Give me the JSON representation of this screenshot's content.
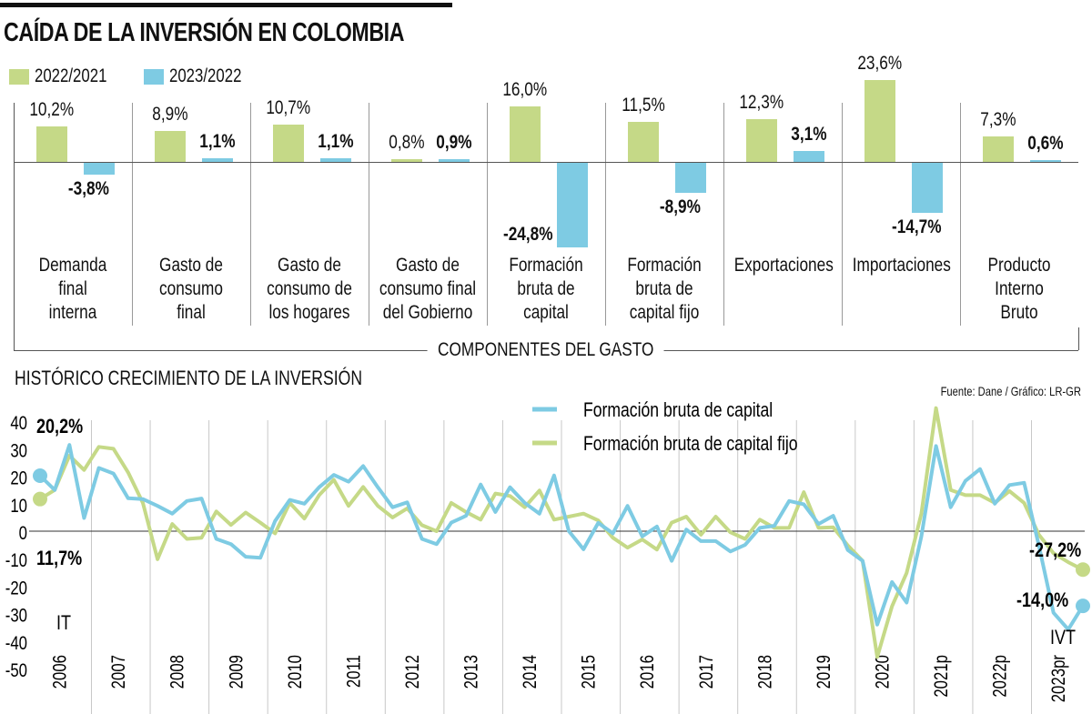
{
  "title": "CAÍDA DE LA INVERSIÓN EN COLOMBIA",
  "colors": {
    "series_2022_2021": "#c5d987",
    "series_2023_2022": "#7ecbe3",
    "fbk": "#7ecbe3",
    "fbkf": "#c5d987"
  },
  "legend": [
    {
      "label": "2022/2021",
      "color": "#c5d987"
    },
    {
      "label": "2023/2022",
      "color": "#7ecbe3"
    }
  ],
  "group_label": "COMPONENTES DEL GASTO",
  "subtitle": "HISTÓRICO CRECIMIENTO DE LA INVERSIÓN",
  "source": "Fuente: Dane / Gráfico: LR-GR",
  "chart_data": [
    {
      "type": "bar",
      "title": "CAÍDA DE LA INVERSIÓN EN COLOMBIA",
      "xlabel": "COMPONENTES DEL GASTO",
      "legend_position": "top-left",
      "categories": [
        {
          "lines": [
            "Demanda",
            "final",
            "interna"
          ]
        },
        {
          "lines": [
            "Gasto de",
            "consumo",
            "final"
          ]
        },
        {
          "lines": [
            "Gasto de",
            "consumo de",
            "los hogares"
          ]
        },
        {
          "lines": [
            "Gasto de",
            "consumo final",
            "del Gobierno"
          ]
        },
        {
          "lines": [
            "Formación",
            "bruta de",
            "capital"
          ]
        },
        {
          "lines": [
            "Formación",
            "bruta de",
            "capital fijo"
          ]
        },
        {
          "lines": [
            "Exportaciones"
          ]
        },
        {
          "lines": [
            "Importaciones"
          ]
        },
        {
          "lines": [
            "Producto",
            "Interno",
            "Bruto"
          ]
        }
      ],
      "series": [
        {
          "name": "2022/2021",
          "values": [
            10.2,
            8.9,
            10.7,
            0.8,
            16.0,
            11.5,
            12.3,
            23.6,
            7.3
          ],
          "labels": [
            "10,2%",
            "8,9%",
            "10,7%",
            "0,8%",
            "16,0%",
            "11,5%",
            "12,3%",
            "23,6%",
            "7,3%"
          ]
        },
        {
          "name": "2023/2022",
          "values": [
            -3.8,
            1.1,
            1.1,
            0.9,
            -24.8,
            -8.9,
            3.1,
            -14.7,
            0.6
          ],
          "labels": [
            "-3,8%",
            "1,1%",
            "1,1%",
            "0,9%",
            "-24,8%",
            "-8,9%",
            "3,1%",
            "-14,7%",
            "0,6%"
          ]
        }
      ]
    },
    {
      "type": "line",
      "title": "HISTÓRICO CRECIMIENTO DE LA INVERSIÓN",
      "ylim": [
        -50,
        40
      ],
      "yticks": [
        40,
        30,
        20,
        10,
        0,
        -10,
        -20,
        -30,
        -40,
        -50
      ],
      "xtick_labels": [
        "2006",
        "2007",
        "2008",
        "2009",
        "2010",
        "2011",
        "2012",
        "2013",
        "2014",
        "2015",
        "2016",
        "2017",
        "2018",
        "2019",
        "2020",
        "2021p",
        "2022p",
        "2023pr"
      ],
      "grid": "vertical",
      "legend_position": "top-center",
      "series": [
        {
          "name": "Formación bruta de capital",
          "color": "#7ecbe3",
          "values": [
            20.2,
            15,
            31.4,
            4.8,
            23,
            21,
            12,
            11.7,
            9.2,
            6.4,
            11,
            11.9,
            -2.8,
            -4.7,
            -9.3,
            -9.7,
            3.7,
            11.4,
            10,
            16,
            20.5,
            18,
            23.7,
            16,
            8.7,
            10.5,
            -2.8,
            -4.7,
            3.1,
            5.6,
            17,
            7,
            16,
            10.3,
            6.4,
            20.3,
            0,
            -6.6,
            3,
            -0.8,
            9.2,
            -1.9,
            1.7,
            -10.8,
            0.6,
            -3.6,
            -3.6,
            -7.4,
            -5,
            1.2,
            2,
            11,
            9.8,
            2.6,
            5.6,
            -6.9,
            -10.8,
            -34,
            -18.5,
            -26,
            -1.9,
            31,
            8.7,
            18.3,
            22.6,
            10,
            16.8,
            17.6,
            -5.2,
            -29.7,
            -35.8,
            -27.2
          ]
        },
        {
          "name": "Formación bruta de capital fijo",
          "color": "#c5d987",
          "values": [
            11.7,
            15,
            27.5,
            22.3,
            30.7,
            30,
            21.4,
            10.3,
            -10.2,
            2.6,
            -2.8,
            -2.4,
            7.2,
            2.3,
            6.8,
            3.1,
            -0.8,
            10.3,
            4.6,
            13.1,
            18.7,
            9.2,
            16.1,
            9.2,
            5,
            8.3,
            2.2,
            0,
            10.3,
            7,
            4.2,
            13.7,
            12.8,
            8.7,
            14.8,
            4.2,
            5.3,
            6.4,
            3.9,
            -2.4,
            -6,
            -3,
            -6.7,
            3.1,
            5.3,
            -1.3,
            5.3,
            -0.4,
            -2.8,
            4.2,
            1.2,
            1.2,
            14.2,
            1.2,
            1.4,
            -5.2,
            -10.8,
            -45.8,
            -27.4,
            -15.2,
            6.4,
            44.8,
            15,
            13.1,
            13.1,
            10.3,
            14.6,
            10.3,
            -1.3,
            -8,
            -11.3,
            -14.0
          ]
        }
      ],
      "annotations": {
        "start_fbk": "20,2%",
        "start_fbkf": "11,7%",
        "start_quarter": "IT",
        "end_fbk": "-27,2%",
        "end_fbkf": "-14,0%",
        "end_quarter": "IVT"
      }
    }
  ]
}
